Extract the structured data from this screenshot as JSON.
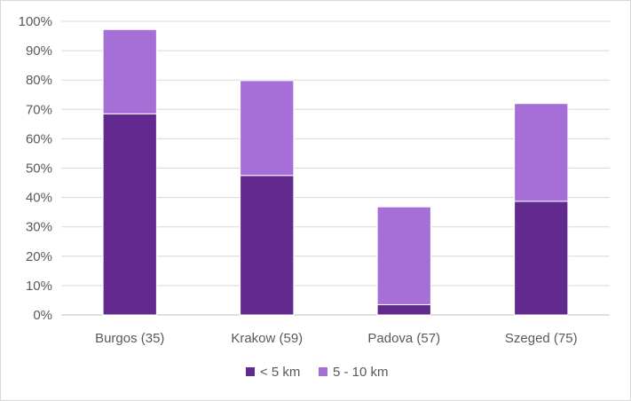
{
  "chart_data": {
    "type": "bar",
    "stacked": true,
    "categories": [
      "Burgos (35)",
      "Krakow (59)",
      "Padova (57)",
      "Szeged (75)"
    ],
    "series": [
      {
        "name": "< 5 km",
        "color": "#622a8e",
        "values": [
          68.5,
          47.5,
          3.5,
          38.7
        ]
      },
      {
        "name": "5 - 10 km",
        "color": "#a56fd7",
        "values": [
          28.7,
          32.3,
          33.3,
          33.3
        ]
      }
    ],
    "ylim": [
      0,
      100
    ],
    "y_ticks": [
      "0%",
      "10%",
      "20%",
      "30%",
      "40%",
      "50%",
      "60%",
      "70%",
      "80%",
      "90%",
      "100%"
    ],
    "grid": true,
    "legend_position": "bottom"
  }
}
